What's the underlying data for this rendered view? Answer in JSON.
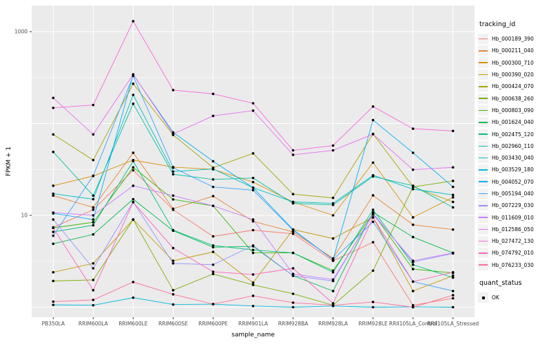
{
  "figure": {
    "background": "#FFFFFF",
    "panel_background": "#EBEBEB",
    "grid_color": "#FFFFFF",
    "point_color": "#000000",
    "tick_color": "#333333",
    "axis_text_color": "#4D4D4D",
    "axis_title_color": "#000000"
  },
  "chart_data": {
    "type": "line",
    "title": "",
    "xlabel": "sample_name",
    "ylabel": "FPKM + 1",
    "y_scale": "log10",
    "grid": true,
    "legend_position": "right",
    "ylim": [
      1,
      1500
    ],
    "y_ticks": [
      {
        "label": "1000",
        "value": 1000
      },
      {
        "label": "10",
        "value": 10
      }
    ],
    "categories": [
      "PB350LA",
      "RRIM600LA",
      "RRIM600LE",
      "RRIM600SE",
      "RRIM600PE",
      "RRIM901LA",
      "RRIM928BA",
      "RRIM928LA",
      "RRIM928LE",
      "RRII105LA_Control",
      "RRII105LA_Stressed"
    ],
    "series": [
      {
        "name": "Hb_000189_390",
        "color": "#F8766D",
        "values": [
          7.4,
          11.5,
          31,
          11.5,
          5.9,
          6.9,
          6.3,
          3.2,
          5.1,
          1.05,
          1.25
        ]
      },
      {
        "name": "Hb_000211_040",
        "color": "#EA8331",
        "values": [
          16.4,
          12.2,
          48,
          11.8,
          16.2,
          8.6,
          6.6,
          3.4,
          16.5,
          7.9,
          7.0
        ]
      },
      {
        "name": "Hb_000300_710",
        "color": "#D89000",
        "values": [
          21,
          26.8,
          40,
          33.5,
          31.7,
          23,
          14,
          10,
          37.5,
          9.5,
          15.7
        ]
      },
      {
        "name": "Hb_000390_020",
        "color": "#C09B00",
        "values": [
          2.4,
          3.0,
          9.0,
          3.2,
          4.0,
          1.85,
          7.0,
          5.6,
          9.5,
          1.5,
          2.2
        ]
      },
      {
        "name": "Hb_000424_070",
        "color": "#A3A500",
        "values": [
          76,
          40,
          271,
          75,
          33,
          47.3,
          17,
          15.5,
          77,
          20.5,
          14
        ]
      },
      {
        "name": "Hb_000638_260",
        "color": "#7CAE00",
        "values": [
          1.93,
          1.98,
          9.0,
          1.53,
          2.3,
          1.75,
          1.4,
          1.05,
          2.5,
          20.4,
          23.7
        ]
      },
      {
        "name": "Hb_000803_090",
        "color": "#39B600",
        "values": [
          7.3,
          8.4,
          33.3,
          14.9,
          12.7,
          3.9,
          3.9,
          2.5,
          10.5,
          2.6,
          2.36
        ]
      },
      {
        "name": "Hb_001624_040",
        "color": "#00BB4E",
        "values": [
          4.9,
          6.2,
          15.0,
          6.8,
          4.5,
          4.6,
          2.2,
          1.5,
          10.8,
          5.8,
          3.9
        ]
      },
      {
        "name": "Hb_002475_120",
        "color": "#00BF7D",
        "values": [
          6.6,
          7.8,
          39,
          6.9,
          4.7,
          4.2,
          3.9,
          2.4,
          11.5,
          2.9,
          2.1
        ]
      },
      {
        "name": "Hb_002960_110",
        "color": "#00C1A3",
        "values": [
          49,
          16.4,
          164,
          28,
          24.6,
          25.5,
          13.5,
          13,
          26.5,
          21,
          12.2
        ]
      },
      {
        "name": "Hb_003430_040",
        "color": "#00BFC4",
        "values": [
          17.2,
          15,
          205,
          30,
          32,
          20,
          14,
          13.5,
          27.3,
          19.3,
          16.7
        ]
      },
      {
        "name": "Hb_003529_180",
        "color": "#00BAE0",
        "values": [
          1.06,
          1.05,
          1.27,
          1.07,
          1.08,
          1.03,
          1.0,
          1.03,
          1.0,
          1.01,
          1.0
        ]
      },
      {
        "name": "Hb_004052_070",
        "color": "#00B0F6",
        "values": [
          10.5,
          9.0,
          340,
          80,
          38.8,
          20,
          7.0,
          3.3,
          109,
          48,
          20.4
        ]
      },
      {
        "name": "Hb_005194_040",
        "color": "#35A2FF",
        "values": [
          6.0,
          27,
          330,
          33,
          20.4,
          18.8,
          6.9,
          3.3,
          8.5,
          1.9,
          1.5
        ]
      },
      {
        "name": "Hb_007229_030",
        "color": "#9590FF",
        "values": [
          9.0,
          2.65,
          14,
          3.0,
          2.9,
          4.7,
          2.2,
          1.93,
          10.5,
          3.1,
          3.85
        ]
      },
      {
        "name": "Hb_011609_010",
        "color": "#C77CFF",
        "values": [
          10.7,
          10.0,
          21,
          16.4,
          12.7,
          9.0,
          2.3,
          2.0,
          10.2,
          3.2,
          3.9
        ]
      },
      {
        "name": "Hb_012586_050",
        "color": "#E76BF3",
        "values": [
          190,
          76,
          343,
          77,
          121,
          138,
          45.6,
          51,
          76.5,
          31.4,
          33.3
        ]
      },
      {
        "name": "Hb_027472_130",
        "color": "#FA62DB",
        "values": [
          148,
          159,
          1300,
          231,
          210,
          166,
          51,
          57.5,
          153,
          87.7,
          83
        ]
      },
      {
        "name": "Hb_074792_010",
        "color": "#FF62BC",
        "values": [
          7.3,
          1.53,
          13.9,
          4.4,
          2.43,
          2.27,
          2.65,
          1.1,
          9.5,
          1.9,
          2.4
        ]
      },
      {
        "name": "Hb_076233_030",
        "color": "#FF6A98",
        "values": [
          1.15,
          1.2,
          1.88,
          1.38,
          1.08,
          1.33,
          1.12,
          1.05,
          1.14,
          1.0,
          1.35
        ]
      }
    ],
    "legend": {
      "tracking_title": "tracking_id",
      "quant_title": "quant_status",
      "quant_items": [
        {
          "label": "OK"
        }
      ]
    }
  }
}
